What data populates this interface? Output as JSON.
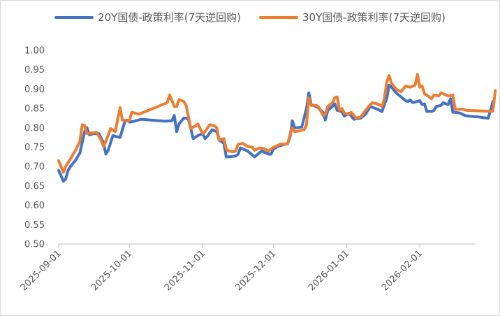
{
  "chart_data": {
    "type": "line",
    "title": "",
    "xlabel": "",
    "ylabel": "",
    "ylim": [
      0.5,
      1.0
    ],
    "yticks": [
      "0.50",
      "0.55",
      "0.60",
      "0.65",
      "0.70",
      "0.75",
      "0.80",
      "0.85",
      "0.90",
      "0.95",
      "1.00"
    ],
    "xlim": [
      "2025-09-01",
      "2026-02-28"
    ],
    "xticks": [
      "2025-09-01",
      "2025-10-01",
      "2025-11-01",
      "2025-12-01",
      "2026-01-01",
      "2026-02-01"
    ],
    "grid": false,
    "legend_position": "top",
    "series": [
      {
        "name": "20Y国债-政策利率(7天逆回购)",
        "color": "#4472C4",
        "points": [
          [
            "2025-09-01",
            0.69
          ],
          [
            "2025-09-03",
            0.662
          ],
          [
            "2025-09-04",
            0.668
          ],
          [
            "2025-09-05",
            0.69
          ],
          [
            "2025-09-06",
            0.7
          ],
          [
            "2025-09-08",
            0.715
          ],
          [
            "2025-09-10",
            0.735
          ],
          [
            "2025-09-12",
            0.79
          ],
          [
            "2025-09-13",
            0.8
          ],
          [
            "2025-09-14",
            0.782
          ],
          [
            "2025-09-16",
            0.785
          ],
          [
            "2025-09-18",
            0.785
          ],
          [
            "2025-09-20",
            0.762
          ],
          [
            "2025-09-21",
            0.732
          ],
          [
            "2025-09-22",
            0.742
          ],
          [
            "2025-09-24",
            0.78
          ],
          [
            "2025-09-25",
            0.778
          ],
          [
            "2025-09-27",
            0.775
          ],
          [
            "2025-09-29",
            0.815
          ],
          [
            "2025-09-30",
            0.82
          ],
          [
            "2025-10-01",
            0.815
          ],
          [
            "2025-10-03",
            0.817
          ],
          [
            "2025-10-06",
            0.822
          ],
          [
            "2025-10-16",
            0.817
          ],
          [
            "2025-10-10",
            0.82
          ],
          [
            "2025-10-19",
            0.818
          ],
          [
            "2025-10-20",
            0.832
          ],
          [
            "2025-10-21",
            0.79
          ],
          [
            "2025-10-22",
            0.81
          ],
          [
            "2025-10-24",
            0.825
          ],
          [
            "2025-10-25",
            0.825
          ],
          [
            "2025-10-26",
            0.822
          ],
          [
            "2025-10-28",
            0.772
          ],
          [
            "2025-10-30",
            0.78
          ],
          [
            "2025-11-01",
            0.785
          ],
          [
            "2025-11-02",
            0.772
          ],
          [
            "2025-11-03",
            0.778
          ],
          [
            "2025-11-05",
            0.795
          ],
          [
            "2025-11-07",
            0.79
          ],
          [
            "2025-11-08",
            0.768
          ],
          [
            "2025-11-10",
            0.76
          ],
          [
            "2025-11-11",
            0.725
          ],
          [
            "2025-11-12",
            0.725
          ],
          [
            "2025-11-15",
            0.727
          ],
          [
            "2025-11-16",
            0.732
          ],
          [
            "2025-11-17",
            0.748
          ],
          [
            "2025-11-20",
            0.74
          ],
          [
            "2025-11-22",
            0.73
          ],
          [
            "2025-11-23",
            0.725
          ],
          [
            "2025-11-25",
            0.735
          ],
          [
            "2025-11-26",
            0.74
          ],
          [
            "2025-11-29",
            0.732
          ],
          [
            "2025-11-30",
            0.732
          ],
          [
            "2025-12-01",
            0.745
          ],
          [
            "2025-12-03",
            0.752
          ],
          [
            "2025-12-06",
            0.758
          ],
          [
            "2025-12-07",
            0.76
          ],
          [
            "2025-12-08",
            0.775
          ],
          [
            "2025-12-09",
            0.818
          ],
          [
            "2025-12-10",
            0.8
          ],
          [
            "2025-12-11",
            0.8
          ],
          [
            "2025-12-13",
            0.802
          ],
          [
            "2025-12-15",
            0.85
          ],
          [
            "2025-12-16",
            0.89
          ],
          [
            "2025-12-17",
            0.86
          ],
          [
            "2025-12-19",
            0.855
          ],
          [
            "2025-12-20",
            0.852
          ],
          [
            "2025-12-21",
            0.845
          ],
          [
            "2025-12-22",
            0.84
          ],
          [
            "2025-12-23",
            0.82
          ],
          [
            "2025-12-24",
            0.845
          ],
          [
            "2025-12-26",
            0.855
          ],
          [
            "2025-12-27",
            0.862
          ],
          [
            "2025-12-28",
            0.845
          ],
          [
            "2025-12-30",
            0.842
          ],
          [
            "2025-12-31",
            0.83
          ],
          [
            "2026-01-02",
            0.838
          ],
          [
            "2026-01-04",
            0.822
          ],
          [
            "2026-01-07",
            0.825
          ],
          [
            "2026-01-08",
            0.83
          ],
          [
            "2026-01-09",
            0.835
          ],
          [
            "2026-01-11",
            0.855
          ],
          [
            "2026-01-14",
            0.848
          ],
          [
            "2026-01-15",
            0.845
          ],
          [
            "2026-01-16",
            0.842
          ],
          [
            "2026-01-17",
            0.86
          ],
          [
            "2026-01-18",
            0.875
          ],
          [
            "2026-01-19",
            0.91
          ],
          [
            "2026-01-20",
            0.905
          ],
          [
            "2026-01-22",
            0.89
          ],
          [
            "2026-01-24",
            0.88
          ],
          [
            "2026-01-26",
            0.87
          ],
          [
            "2026-01-27",
            0.868
          ],
          [
            "2026-01-28",
            0.872
          ],
          [
            "2026-01-29",
            0.865
          ],
          [
            "2026-01-31",
            0.868
          ],
          [
            "2026-02-01",
            0.87
          ],
          [
            "2026-02-02",
            0.86
          ],
          [
            "2026-02-03",
            0.862
          ],
          [
            "2026-02-04",
            0.842
          ],
          [
            "2026-02-05",
            0.843
          ],
          [
            "2026-02-06",
            0.842
          ],
          [
            "2026-02-07",
            0.845
          ],
          [
            "2026-02-08",
            0.855
          ],
          [
            "2026-02-10",
            0.858
          ],
          [
            "2026-02-11",
            0.865
          ],
          [
            "2026-02-12",
            0.862
          ],
          [
            "2026-02-13",
            0.86
          ],
          [
            "2026-02-14",
            0.875
          ],
          [
            "2026-02-15",
            0.84
          ],
          [
            "2026-02-16",
            0.84
          ],
          [
            "2026-02-18",
            0.838
          ],
          [
            "2026-02-20",
            0.832
          ],
          [
            "2026-02-22",
            0.83
          ],
          [
            "2026-02-26",
            0.828
          ],
          [
            "2026-02-28",
            0.826
          ],
          [
            "2026-03-02",
            0.825
          ],
          [
            "2026-03-04",
            0.868
          ]
        ]
      },
      {
        "name": "30Y国债-政策利率(7天逆回购)",
        "color": "#ED7D31",
        "points": [
          [
            "2025-09-01",
            0.715
          ],
          [
            "2025-09-03",
            0.685
          ],
          [
            "2025-09-04",
            0.7
          ],
          [
            "2025-09-06",
            0.72
          ],
          [
            "2025-09-08",
            0.74
          ],
          [
            "2025-09-10",
            0.765
          ],
          [
            "2025-09-11",
            0.808
          ],
          [
            "2025-09-12",
            0.806
          ],
          [
            "2025-09-13",
            0.785
          ],
          [
            "2025-09-15",
            0.787
          ],
          [
            "2025-09-17",
            0.788
          ],
          [
            "2025-09-19",
            0.768
          ],
          [
            "2025-09-20",
            0.752
          ],
          [
            "2025-09-21",
            0.765
          ],
          [
            "2025-09-23",
            0.798
          ],
          [
            "2025-09-25",
            0.79
          ],
          [
            "2025-09-27",
            0.852
          ],
          [
            "2025-09-28",
            0.82
          ],
          [
            "2025-09-30",
            0.818
          ],
          [
            "2025-10-01",
            0.82
          ],
          [
            "2025-10-02",
            0.84
          ],
          [
            "2025-10-05",
            0.835
          ],
          [
            "2025-10-17",
            0.865
          ],
          [
            "2025-10-18",
            0.885
          ],
          [
            "2025-10-20",
            0.855
          ],
          [
            "2025-10-21",
            0.855
          ],
          [
            "2025-10-22",
            0.873
          ],
          [
            "2025-10-24",
            0.868
          ],
          [
            "2025-10-25",
            0.858
          ],
          [
            "2025-10-27",
            0.798
          ],
          [
            "2025-10-29",
            0.805
          ],
          [
            "2025-10-30",
            0.81
          ],
          [
            "2025-11-01",
            0.785
          ],
          [
            "2025-11-02",
            0.79
          ],
          [
            "2025-11-04",
            0.808
          ],
          [
            "2025-11-06",
            0.805
          ],
          [
            "2025-11-07",
            0.8
          ],
          [
            "2025-11-08",
            0.768
          ],
          [
            "2025-11-10",
            0.772
          ],
          [
            "2025-11-11",
            0.745
          ],
          [
            "2025-11-12",
            0.74
          ],
          [
            "2025-11-14",
            0.738
          ],
          [
            "2025-11-15",
            0.74
          ],
          [
            "2025-11-16",
            0.757
          ],
          [
            "2025-11-18",
            0.76
          ],
          [
            "2025-11-20",
            0.752
          ],
          [
            "2025-11-22",
            0.75
          ],
          [
            "2025-11-23",
            0.742
          ],
          [
            "2025-11-25",
            0.748
          ],
          [
            "2025-11-27",
            0.746
          ],
          [
            "2025-11-29",
            0.74
          ],
          [
            "2025-12-01",
            0.75
          ],
          [
            "2025-12-02",
            0.752
          ],
          [
            "2025-12-04",
            0.758
          ],
          [
            "2025-12-07",
            0.758
          ],
          [
            "2025-12-08",
            0.782
          ],
          [
            "2025-12-09",
            0.8
          ],
          [
            "2025-12-10",
            0.79
          ],
          [
            "2025-12-12",
            0.792
          ],
          [
            "2025-12-14",
            0.795
          ],
          [
            "2025-12-15",
            0.808
          ],
          [
            "2025-12-16",
            0.878
          ],
          [
            "2025-12-17",
            0.858
          ],
          [
            "2025-12-19",
            0.858
          ],
          [
            "2025-12-20",
            0.855
          ],
          [
            "2025-12-22",
            0.832
          ],
          [
            "2025-12-23",
            0.835
          ],
          [
            "2025-12-24",
            0.855
          ],
          [
            "2025-12-26",
            0.865
          ],
          [
            "2025-12-27",
            0.878
          ],
          [
            "2025-12-28",
            0.88
          ],
          [
            "2025-12-29",
            0.845
          ],
          [
            "2025-12-30",
            0.85
          ],
          [
            "2025-12-31",
            0.838
          ],
          [
            "2026-01-02",
            0.835
          ],
          [
            "2026-01-03",
            0.84
          ],
          [
            "2026-01-05",
            0.825
          ],
          [
            "2026-01-07",
            0.828
          ],
          [
            "2026-01-09",
            0.845
          ],
          [
            "2026-01-11",
            0.86
          ],
          [
            "2026-01-12",
            0.865
          ],
          [
            "2026-01-14",
            0.862
          ],
          [
            "2026-01-16",
            0.855
          ],
          [
            "2026-01-17",
            0.875
          ],
          [
            "2026-01-18",
            0.918
          ],
          [
            "2026-01-19",
            0.935
          ],
          [
            "2026-01-20",
            0.915
          ],
          [
            "2026-01-22",
            0.9
          ],
          [
            "2026-01-24",
            0.893
          ],
          [
            "2026-01-26",
            0.908
          ],
          [
            "2026-01-27",
            0.906
          ],
          [
            "2026-01-28",
            0.905
          ],
          [
            "2026-01-30",
            0.91
          ],
          [
            "2026-01-31",
            0.938
          ],
          [
            "2026-02-01",
            0.905
          ],
          [
            "2026-02-02",
            0.908
          ],
          [
            "2026-02-03",
            0.888
          ],
          [
            "2026-02-05",
            0.88
          ],
          [
            "2026-02-06",
            0.875
          ],
          [
            "2026-02-07",
            0.885
          ],
          [
            "2026-02-09",
            0.882
          ],
          [
            "2026-02-10",
            0.89
          ],
          [
            "2026-02-12",
            0.885
          ],
          [
            "2026-02-13",
            0.882
          ],
          [
            "2026-02-15",
            0.885
          ],
          [
            "2026-02-16",
            0.848
          ],
          [
            "2026-02-17",
            0.848
          ],
          [
            "2026-02-19",
            0.848
          ],
          [
            "2026-02-21",
            0.845
          ],
          [
            "2026-02-25",
            0.844
          ],
          [
            "2026-03-01",
            0.843
          ],
          [
            "2026-03-03",
            0.843
          ],
          [
            "2026-03-04",
            0.843
          ],
          [
            "2026-03-05",
            0.896
          ]
        ]
      }
    ]
  }
}
